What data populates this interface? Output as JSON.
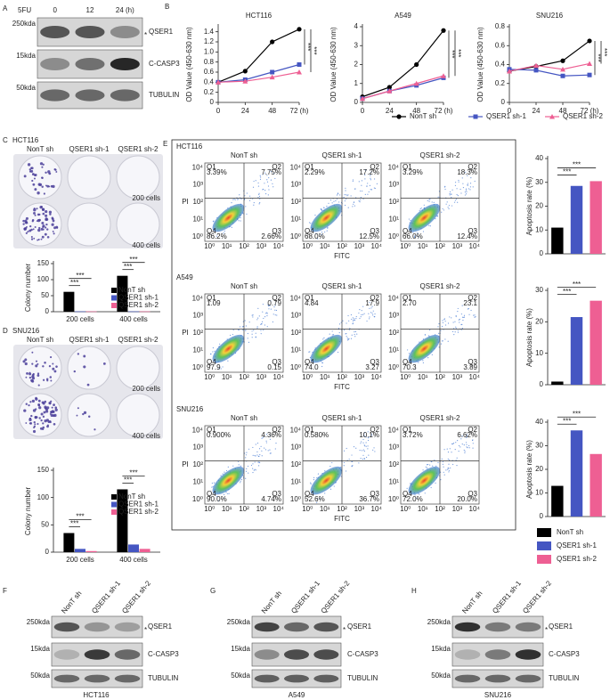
{
  "panel_labels": [
    "A",
    "B",
    "C",
    "D",
    "E",
    "F",
    "G",
    "H"
  ],
  "chart_data": [
    {
      "type": "line",
      "title": "HCT116",
      "ylabel": "OD Value (450-630 nm)",
      "x": [
        0,
        24,
        48,
        72
      ],
      "xlim": [
        0,
        72
      ],
      "xticks": [
        0,
        24,
        48,
        {
          "value": 72,
          "label": "72 (h)"
        }
      ],
      "ylim": [
        0,
        1.5
      ],
      "yticks": [
        0,
        0.2,
        0.4,
        0.6,
        0.8,
        {
          "value": 1,
          "label": "1.0"
        },
        1.2,
        1.4
      ],
      "series": [
        {
          "color": "#000000",
          "marker": "circle",
          "values": [
            0.4,
            0.62,
            1.2,
            1.45
          ]
        },
        {
          "color": "#4556c2",
          "marker": "square",
          "values": [
            0.4,
            0.45,
            0.6,
            0.75
          ]
        },
        {
          "color": "#ee5f93",
          "marker": "triangle",
          "values": [
            0.4,
            0.42,
            0.5,
            0.6
          ]
        }
      ],
      "significance": [
        "***",
        "***"
      ]
    },
    {
      "type": "line",
      "title": "A549",
      "ylabel": "OD Value (450-630 nm)",
      "x": [
        0,
        24,
        48,
        72
      ],
      "xlim": [
        0,
        72
      ],
      "xticks": [
        0,
        24,
        48,
        {
          "value": 72,
          "label": "72 (h)"
        }
      ],
      "ylim": [
        0,
        4
      ],
      "yticks": [
        0,
        1,
        2,
        3,
        4
      ],
      "series": [
        {
          "color": "#000000",
          "marker": "circle",
          "values": [
            0.3,
            0.8,
            2.0,
            3.8
          ]
        },
        {
          "color": "#4556c2",
          "marker": "square",
          "values": [
            0.2,
            0.6,
            0.9,
            1.3
          ]
        },
        {
          "color": "#ee5f93",
          "marker": "triangle",
          "values": [
            0.2,
            0.6,
            1.0,
            1.4
          ]
        }
      ],
      "significance": [
        "***",
        "***"
      ]
    },
    {
      "type": "line",
      "title": "SNU216",
      "ylabel": "OD Value (450-630 nm)",
      "x": [
        0,
        24,
        48,
        72
      ],
      "xlim": [
        0,
        72
      ],
      "xticks": [
        0,
        24,
        48,
        {
          "value": 72,
          "label": "72 (h)"
        }
      ],
      "ylim": [
        0,
        0.8
      ],
      "yticks": [
        0,
        0.2,
        0.4,
        0.6,
        0.8
      ],
      "legend": "below",
      "series": [
        {
          "name": "NonT sh",
          "color": "#000000",
          "marker": "circle",
          "values": [
            0.33,
            0.38,
            0.44,
            0.65
          ]
        },
        {
          "name": "QSER1 sh-1",
          "color": "#4556c2",
          "marker": "square",
          "values": [
            0.35,
            0.34,
            0.28,
            0.29
          ]
        },
        {
          "name": "QSER1 sh-2",
          "color": "#ee5f93",
          "marker": "triangle",
          "values": [
            0.33,
            0.39,
            0.35,
            0.41
          ]
        }
      ],
      "significance": [
        "***",
        "***"
      ]
    },
    {
      "type": "bar",
      "ylabel": "Colony number",
      "categories": [
        "200 cells",
        "400 cells"
      ],
      "ylim": [
        0,
        150
      ],
      "yticks": [
        0,
        50,
        100,
        150
      ],
      "legend": "right",
      "series": [
        {
          "name": "NonT sh",
          "color": "#000000",
          "values": [
            62,
            112
          ]
        },
        {
          "name": "QSER1 sh-1",
          "color": "#4556c2",
          "values": [
            1,
            1
          ]
        },
        {
          "name": "QSER1 sh-2",
          "color": "#ee5f93",
          "values": [
            1,
            1
          ]
        }
      ],
      "significance": [
        "***",
        "***",
        "***",
        "***"
      ]
    },
    {
      "type": "bar",
      "ylabel": "Colony number",
      "categories": [
        "200 cells",
        "400 cells"
      ],
      "ylim": [
        0,
        150
      ],
      "yticks": [
        0,
        50,
        100,
        150
      ],
      "legend": "right",
      "series": [
        {
          "name": "NonT sh",
          "color": "#000000",
          "values": [
            35,
            115
          ]
        },
        {
          "name": "QSER1 sh-1",
          "color": "#4556c2",
          "values": [
            6,
            14
          ]
        },
        {
          "name": "QSER1 sh-2",
          "color": "#ee5f93",
          "values": [
            2,
            6
          ]
        }
      ],
      "significance": [
        "***",
        "***",
        "***",
        "***"
      ]
    },
    {
      "type": "bar",
      "ylabel": "Apoptosis rate (%)",
      "categories": [
        null
      ],
      "ylim": [
        0,
        40
      ],
      "yticks": [
        0,
        10,
        20,
        30,
        40
      ],
      "series": [
        {
          "color": "#000000",
          "values": [
            11
          ]
        },
        {
          "color": "#4556c2",
          "values": [
            28.5
          ]
        },
        {
          "color": "#ee5f93",
          "values": [
            30.5
          ]
        }
      ],
      "significance": [
        "***",
        "***"
      ]
    },
    {
      "type": "bar",
      "ylabel": "Apoptosis rate (%)",
      "categories": [
        null
      ],
      "ylim": [
        0,
        30
      ],
      "yticks": [
        0,
        10,
        20,
        30
      ],
      "series": [
        {
          "color": "#000000",
          "values": [
            1
          ]
        },
        {
          "color": "#4556c2",
          "values": [
            21.5
          ]
        },
        {
          "color": "#ee5f93",
          "values": [
            26.7
          ]
        }
      ],
      "significance": [
        "***",
        "***"
      ]
    },
    {
      "type": "bar",
      "ylabel": "Apoptosis rate (%)",
      "categories": [
        null
      ],
      "ylim": [
        0,
        40
      ],
      "yticks": [
        0,
        10,
        20,
        30,
        40
      ],
      "legend": "below",
      "series": [
        {
          "name": "NonT sh",
          "color": "#000000",
          "values": [
            13
          ]
        },
        {
          "name": "QSER1 sh-1",
          "color": "#4556c2",
          "values": [
            36.5
          ]
        },
        {
          "name": "QSER1 sh-2",
          "color": "#ee5f93",
          "values": [
            26.5
          ]
        }
      ],
      "significance": [
        "***",
        "***"
      ]
    }
  ],
  "colonies": [
    {
      "cell": "HCT116",
      "columns": [
        "NonT sh",
        "QSER1 sh-1",
        "QSER1 sh-2"
      ],
      "rows": [
        "200 cells",
        "400 cells"
      ]
    },
    {
      "cell": "SNU216",
      "columns": [
        "NonT sh",
        "QSER1 sh-1",
        "QSER1 sh-2"
      ],
      "rows": [
        "200 cells",
        "400 cells"
      ]
    }
  ],
  "flow": {
    "x_label": "FITC",
    "y_label": "PI",
    "ticks": [
      "10⁰",
      "10¹",
      "10²",
      "10³",
      "10⁴"
    ],
    "quadrant_names": [
      "Q1",
      "Q2",
      "Q3",
      "Q4"
    ],
    "rows": [
      {
        "cell": "HCT116",
        "plots": [
          {
            "title": "NonT sh",
            "q": [
              "3.39%",
              "7.75%",
              "2.66%",
              "86.2%"
            ]
          },
          {
            "title": "QSER1 sh-1",
            "q": [
              "2.29%",
              "17.2%",
              "12.5%",
              "68.0%"
            ]
          },
          {
            "title": "QSER1 sh-2",
            "q": [
              "3.29%",
              "18.3%",
              "12.4%",
              "66.0%"
            ]
          }
        ]
      },
      {
        "cell": "A549",
        "plots": [
          {
            "title": "NonT sh",
            "q": [
              "1.09",
              "0.79",
              "0.15",
              "97.9"
            ]
          },
          {
            "title": "QSER1 sh-1",
            "q": [
              "4.84",
              "17.9",
              "3.27",
              "74.0"
            ]
          },
          {
            "title": "QSER1 sh-2",
            "q": [
              "2.70",
              "23.1",
              "3.89",
              "70.3"
            ]
          }
        ]
      },
      {
        "cell": "SNU216",
        "plots": [
          {
            "title": "NonT sh",
            "q": [
              "0.900%",
              "4.36%",
              "4.74%",
              "90.0%"
            ]
          },
          {
            "title": "QSER1 sh-1",
            "q": [
              "0.580%",
              "10.1%",
              "36.7%",
              "52.6%"
            ]
          },
          {
            "title": "QSER1 sh-2",
            "q": [
              "3.72%",
              "6.62%",
              "20.0%",
              "72.0%"
            ]
          }
        ]
      }
    ]
  },
  "blots": [
    {
      "treatment": "5FU",
      "lanes": [
        "0",
        "12",
        "24 (h)"
      ],
      "markers": [
        "250kda",
        "15kda",
        "50kda"
      ],
      "proteins": [
        "QSER1",
        "C-CASP3",
        "TUBULIN"
      ],
      "asterisk": "*"
    },
    {
      "lanes": [
        "NonT sh",
        "QSER1 sh-1",
        "QSER1 sh-2"
      ],
      "markers": [
        "250kda",
        "15kda",
        "50kda"
      ],
      "proteins": [
        "QSER1",
        "C-CASP3",
        "TUBULIN"
      ],
      "asterisk": "*",
      "cell": "HCT116"
    },
    {
      "lanes": [
        "NonT sh",
        "QSER1 sh-1",
        "QSER1 sh-2"
      ],
      "markers": [
        "250kda",
        "15kda",
        "50kda"
      ],
      "proteins": [
        "QSER1",
        "C-CASP3",
        "TUBULIN"
      ],
      "asterisk": "*",
      "cell": "A549"
    },
    {
      "lanes": [
        "NonT sh",
        "QSER1 sh-1",
        "QSER1 sh-2"
      ],
      "markers": [
        "250kda",
        "15kda",
        "50kda"
      ],
      "proteins": [
        "QSER1",
        "C-CASP3",
        "TUBULIN"
      ],
      "asterisk": "*",
      "cell": "SNU216"
    }
  ]
}
